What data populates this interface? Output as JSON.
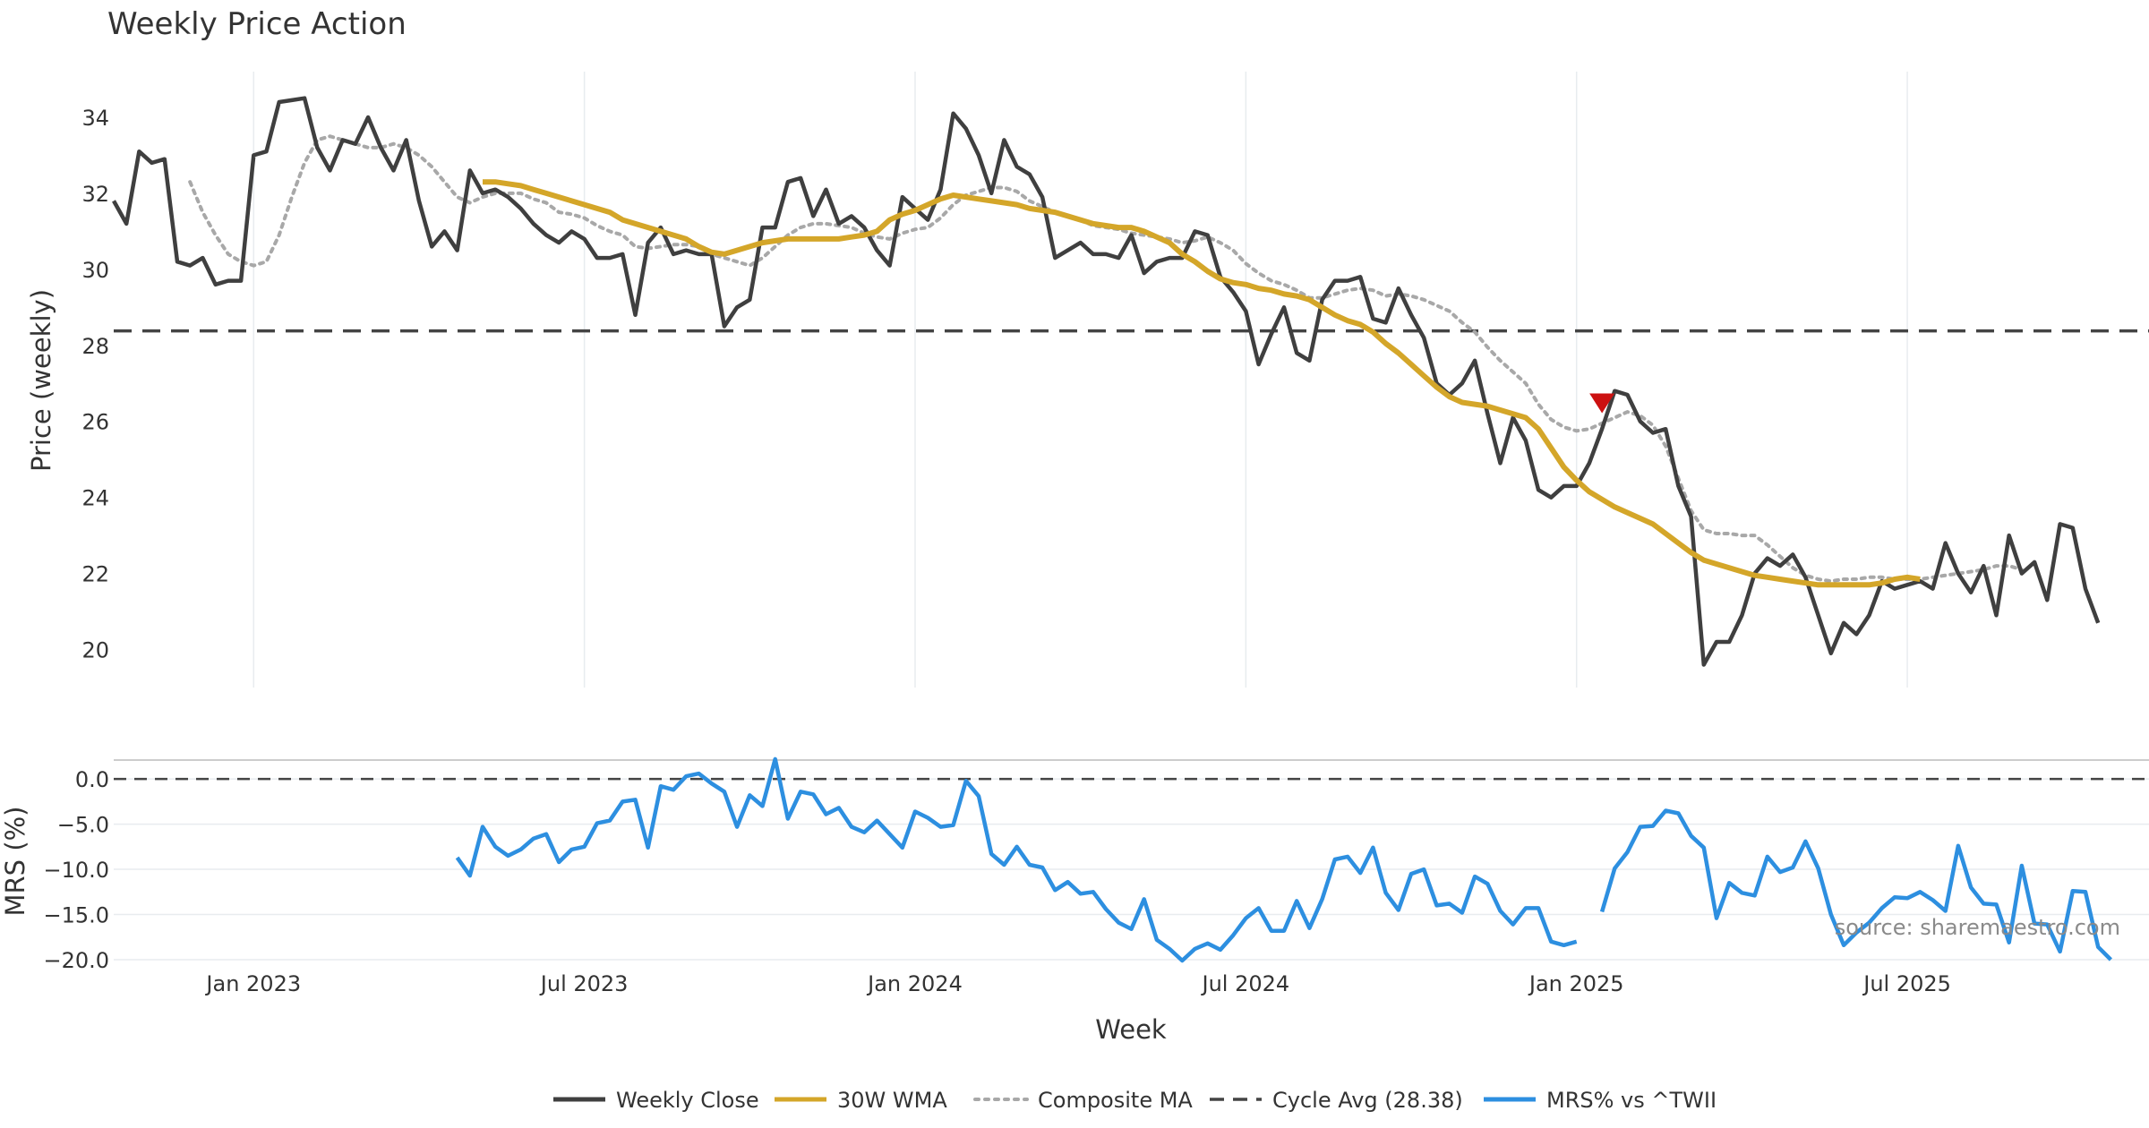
{
  "chart_data": {
    "title": "Weekly Price Action",
    "type": "line",
    "xlabel": "Week",
    "source_note": "source: sharemaestro.com",
    "x_ticks": [
      {
        "label": "Jan 2023",
        "week": 11
      },
      {
        "label": "Jul 2023",
        "week": 37
      },
      {
        "label": "Jan 2024",
        "week": 63
      },
      {
        "label": "Jul 2024",
        "week": 89
      },
      {
        "label": "Jan 2025",
        "week": 115
      },
      {
        "label": "Jul 2025",
        "week": 141
      }
    ],
    "price_panel": {
      "ylabel": "Price (weekly)",
      "ylim": [
        19,
        35.2
      ],
      "yticks": [
        "20",
        "22",
        "24",
        "26",
        "28",
        "30",
        "32",
        "34"
      ],
      "cycle_avg": 28.38,
      "signal_marker": {
        "week": 117,
        "value": 26.5,
        "shape": "down-triangle"
      },
      "series": [
        {
          "name": "Weekly Close",
          "start_week": 0,
          "values": [
            31.8,
            31.2,
            33.1,
            32.8,
            32.9,
            30.2,
            30.1,
            30.3,
            29.6,
            29.7,
            29.7,
            33.0,
            33.1,
            34.4,
            34.45,
            34.5,
            33.2,
            32.6,
            33.4,
            33.3,
            34.0,
            33.2,
            32.6,
            33.4,
            31.8,
            30.6,
            31.0,
            30.5,
            32.6,
            32.0,
            32.1,
            31.9,
            31.6,
            31.2,
            30.9,
            30.7,
            31.0,
            30.8,
            30.3,
            30.3,
            30.4,
            28.8,
            30.7,
            31.1,
            30.4,
            30.5,
            30.4,
            30.4,
            28.5,
            29.0,
            29.2,
            31.1,
            31.1,
            32.3,
            32.4,
            31.4,
            32.1,
            31.2,
            31.4,
            31.1,
            30.5,
            30.1,
            31.9,
            31.6,
            31.3,
            32.1,
            34.1,
            33.7,
            33.0,
            32.0,
            33.4,
            32.7,
            32.5,
            31.9,
            30.3,
            30.5,
            30.7,
            30.4,
            30.4,
            30.3,
            30.9,
            29.9,
            30.2,
            30.3,
            30.3,
            31.0,
            30.9,
            29.8,
            29.4,
            28.9,
            27.5,
            28.3,
            29.0,
            27.8,
            27.6,
            29.2,
            29.7,
            29.7,
            29.8,
            28.7,
            28.6,
            29.5,
            28.8,
            28.2,
            27.0,
            26.7,
            27.0,
            27.6,
            26.2,
            24.9,
            26.1,
            25.5,
            24.2,
            24.0,
            24.3,
            24.3,
            24.9,
            25.8,
            26.8,
            26.7,
            26.0,
            25.7,
            25.8,
            24.3,
            23.5,
            19.6,
            20.2,
            20.2,
            20.9,
            22.0,
            22.4,
            22.2,
            22.5,
            21.9,
            20.9,
            19.9,
            20.7,
            20.4,
            20.9,
            21.8,
            21.6,
            21.7,
            21.8,
            21.6,
            22.8,
            22.0,
            21.5,
            22.2,
            20.9,
            23.0,
            22.0,
            22.3,
            21.3,
            23.3,
            23.2,
            21.6,
            20.7
          ]
        },
        {
          "name": "30W WMA",
          "start_week": 29,
          "values": [
            32.3,
            32.3,
            32.25,
            32.2,
            32.1,
            32.0,
            31.9,
            31.8,
            31.7,
            31.6,
            31.5,
            31.3,
            31.2,
            31.1,
            31.0,
            30.9,
            30.8,
            30.6,
            30.45,
            30.4,
            30.5,
            30.6,
            30.7,
            30.75,
            30.8,
            30.8,
            30.8,
            30.8,
            30.8,
            30.85,
            30.9,
            31.0,
            31.3,
            31.45,
            31.55,
            31.7,
            31.85,
            31.95,
            31.9,
            31.85,
            31.8,
            31.75,
            31.7,
            31.6,
            31.55,
            31.5,
            31.4,
            31.3,
            31.2,
            31.15,
            31.1,
            31.1,
            31.0,
            30.85,
            30.7,
            30.4,
            30.2,
            29.95,
            29.75,
            29.65,
            29.6,
            29.5,
            29.45,
            29.35,
            29.3,
            29.2,
            29.0,
            28.8,
            28.65,
            28.55,
            28.35,
            28.05,
            27.8,
            27.5,
            27.2,
            26.9,
            26.65,
            26.5,
            26.45,
            26.4,
            26.3,
            26.2,
            26.1,
            25.8,
            25.3,
            24.8,
            24.45,
            24.15,
            23.95,
            23.75,
            23.6,
            23.45,
            23.3,
            23.05,
            22.8,
            22.55,
            22.35,
            22.25,
            22.15,
            22.05,
            21.95,
            21.9,
            21.85,
            21.8,
            21.75,
            21.7,
            21.7,
            21.7,
            21.7,
            21.7,
            21.75,
            21.85,
            21.9,
            21.85
          ]
        },
        {
          "name": "Composite MA",
          "start_week": 6,
          "values": [
            32.3,
            31.5,
            30.9,
            30.4,
            30.2,
            30.1,
            30.2,
            30.9,
            31.9,
            32.8,
            33.4,
            33.5,
            33.4,
            33.3,
            33.2,
            33.2,
            33.3,
            33.2,
            33.0,
            32.7,
            32.3,
            31.9,
            31.75,
            31.9,
            32.0,
            32.0,
            32.0,
            31.85,
            31.75,
            31.5,
            31.45,
            31.35,
            31.15,
            31.0,
            30.9,
            30.6,
            30.55,
            30.6,
            30.65,
            30.65,
            30.6,
            30.4,
            30.3,
            30.2,
            30.1,
            30.3,
            30.6,
            30.9,
            31.1,
            31.2,
            31.2,
            31.15,
            31.1,
            30.95,
            30.85,
            30.8,
            30.95,
            31.05,
            31.1,
            31.35,
            31.7,
            31.95,
            32.05,
            32.15,
            32.15,
            32.05,
            31.8,
            31.65,
            31.5,
            31.4,
            31.3,
            31.15,
            31.1,
            31.05,
            30.95,
            30.9,
            30.85,
            30.8,
            30.7,
            30.75,
            30.85,
            30.7,
            30.5,
            30.15,
            29.9,
            29.7,
            29.6,
            29.45,
            29.25,
            29.25,
            29.35,
            29.45,
            29.5,
            29.45,
            29.3,
            29.35,
            29.3,
            29.2,
            29.05,
            28.9,
            28.6,
            28.35,
            27.95,
            27.6,
            27.3,
            27.0,
            26.45,
            26.05,
            25.85,
            25.75,
            25.8,
            25.95,
            26.1,
            26.25,
            26.15,
            25.9,
            25.35,
            24.5,
            23.65,
            23.15,
            23.05,
            23.05,
            23.0,
            23.0,
            22.75,
            22.45,
            22.15,
            21.95,
            21.85,
            21.8,
            21.85,
            21.85,
            21.9,
            21.9,
            21.85,
            21.85,
            21.85,
            21.9,
            21.95,
            22.0,
            22.05,
            22.1,
            22.2,
            22.2,
            22.1
          ]
        },
        {
          "name": "Cycle Avg (28.38)",
          "start_week": 0,
          "values": [
            28.38
          ]
        }
      ]
    },
    "mrs_panel": {
      "ylabel": "MRS (%)",
      "ylim": [
        -20.3,
        1.5
      ],
      "yticks": [
        "0.0",
        "−5.0",
        "−10.0",
        "−15.0",
        "−20.0"
      ],
      "zero_line": 0,
      "series": {
        "name": "MRS% vs ^TWII",
        "start_week": 27,
        "values": [
          -8.7,
          -10.7,
          -5.3,
          -7.5,
          -8.5,
          -7.8,
          -6.6,
          -6.1,
          -9.2,
          -7.8,
          -7.5,
          -4.9,
          -4.6,
          -2.5,
          -2.3,
          -7.6,
          -0.8,
          -1.2,
          0.3,
          0.6,
          -0.5,
          -1.4,
          -5.3,
          -1.8,
          -3.0,
          2.2,
          -4.4,
          -1.4,
          -1.7,
          -3.9,
          -3.2,
          -5.3,
          -5.9,
          -4.6,
          -6.1,
          -7.6,
          -3.6,
          -4.3,
          -5.3,
          -5.1,
          -0.2,
          -1.9,
          -8.3,
          -9.5,
          -7.5,
          -9.5,
          -9.8,
          -12.3,
          -11.4,
          -12.7,
          -12.5,
          -14.4,
          -15.9,
          -16.6,
          -13.3,
          -17.8,
          -18.8,
          -20.1,
          -18.8,
          -18.2,
          -18.9,
          -17.3,
          -15.4,
          -14.3,
          -16.8,
          -16.8,
          -13.5,
          -16.5,
          -13.3,
          -8.9,
          -8.6,
          -10.4,
          -7.6,
          -12.6,
          -14.5,
          -10.5,
          -10.0,
          -14.0,
          -13.8,
          -14.8,
          -10.8,
          -11.6,
          -14.6,
          -16.1,
          -14.3,
          -14.3,
          -18.0,
          -18.4,
          -18.0,
          null,
          -14.7,
          -9.9,
          -8.1,
          -5.3,
          -5.2,
          -3.5,
          -3.8,
          -6.3,
          -7.6,
          -15.4,
          -11.5,
          -12.6,
          -12.9,
          -8.6,
          -10.3,
          -9.8,
          -6.9,
          -9.9,
          -15.0,
          -18.4,
          -17.0,
          -15.9,
          -14.3,
          -13.1,
          -13.2,
          -12.5,
          -13.4,
          -14.6,
          -7.4,
          -12.0,
          -13.8,
          -13.9,
          -18.1,
          -9.6,
          -16.0,
          -16.1,
          -19.1,
          -12.4,
          -12.5,
          -18.6,
          -20.0
        ]
      }
    },
    "legend": [
      {
        "label": "Weekly Close",
        "color": "#3f3f3f",
        "style": "solid"
      },
      {
        "label": "30W WMA",
        "color": "#d4a629",
        "style": "solid"
      },
      {
        "label": "Composite MA",
        "color": "#a8a8a8",
        "style": "dotted"
      },
      {
        "label": "Cycle Avg (28.38)",
        "color": "#444444",
        "style": "dashed"
      },
      {
        "label": "MRS% vs ^TWII",
        "color": "#2d8fe0",
        "style": "solid"
      }
    ],
    "colors": {
      "close": "#3f3f3f",
      "wma": "#d4a629",
      "composite": "#a8a8a8",
      "cycle": "#444444",
      "mrs": "#2d8fe0",
      "marker": "#cc1111",
      "grid": "#e8ecef"
    }
  }
}
